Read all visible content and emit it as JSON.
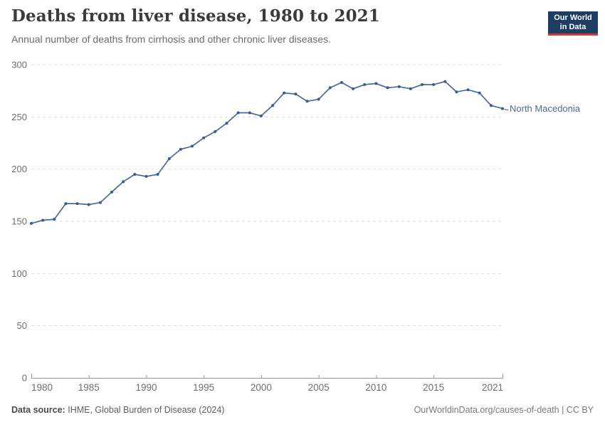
{
  "header": {
    "title": "Deaths from liver disease, 1980 to 2021",
    "subtitle": "Annual number of deaths from cirrhosis and other chronic liver diseases.",
    "logo": {
      "line1": "Our World",
      "line2": "in Data",
      "background": "#1d3d63",
      "accent": "#cc3b33"
    }
  },
  "chart_data": {
    "type": "line",
    "title": "Deaths from liver disease, 1980 to 2021",
    "xlabel": "",
    "ylabel": "",
    "xlim": [
      1980,
      2021
    ],
    "ylim": [
      0,
      300
    ],
    "xticks": [
      1980,
      1985,
      1990,
      1995,
      2000,
      2005,
      2010,
      2015,
      2021
    ],
    "yticks": [
      0,
      50,
      100,
      150,
      200,
      250,
      300
    ],
    "grid": "horizontal-dashed",
    "legend_position": "end-of-line-label",
    "colors": {
      "grid": "#d9d9d9",
      "axis": "#9a9a9a",
      "tick_text": "#6e6e6e"
    },
    "x": [
      1980,
      1981,
      1982,
      1983,
      1984,
      1985,
      1986,
      1987,
      1988,
      1989,
      1990,
      1991,
      1992,
      1993,
      1994,
      1995,
      1996,
      1997,
      1998,
      1999,
      2000,
      2001,
      2002,
      2003,
      2004,
      2005,
      2006,
      2007,
      2008,
      2009,
      2010,
      2011,
      2012,
      2013,
      2014,
      2015,
      2016,
      2017,
      2018,
      2019,
      2020,
      2021
    ],
    "series": [
      {
        "name": "North Macedonia",
        "color": "#4c6a9c",
        "marker_color": "#3d5a88",
        "values": [
          148,
          151,
          152,
          167,
          167,
          166,
          168,
          178,
          188,
          195,
          193,
          195,
          210,
          219,
          222,
          230,
          236,
          244,
          254,
          254,
          251,
          261,
          273,
          272,
          265,
          267,
          278,
          283,
          277,
          281,
          282,
          278,
          279,
          277,
          281,
          281,
          284,
          274,
          276,
          273,
          261,
          258
        ]
      }
    ]
  },
  "footer": {
    "source_label": "Data source:",
    "source_text": "IHME, Global Burden of Disease (2024)",
    "rights": "OurWorldinData.org/causes-of-death | CC BY"
  }
}
